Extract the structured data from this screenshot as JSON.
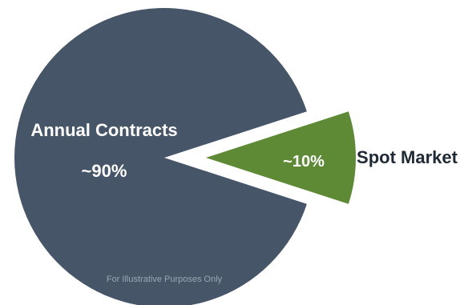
{
  "chart_data": {
    "type": "pie",
    "title": "",
    "slices": [
      {
        "label": "Annual Contracts",
        "value_label": "~90%",
        "value": 90,
        "color": "#465568",
        "exploded": false
      },
      {
        "label": "Spot Market",
        "value_label": "~10%",
        "value": 10,
        "color": "#5e8a36",
        "exploded": true
      }
    ],
    "legend": "none",
    "note": "For Illustrative Purposes Only"
  }
}
